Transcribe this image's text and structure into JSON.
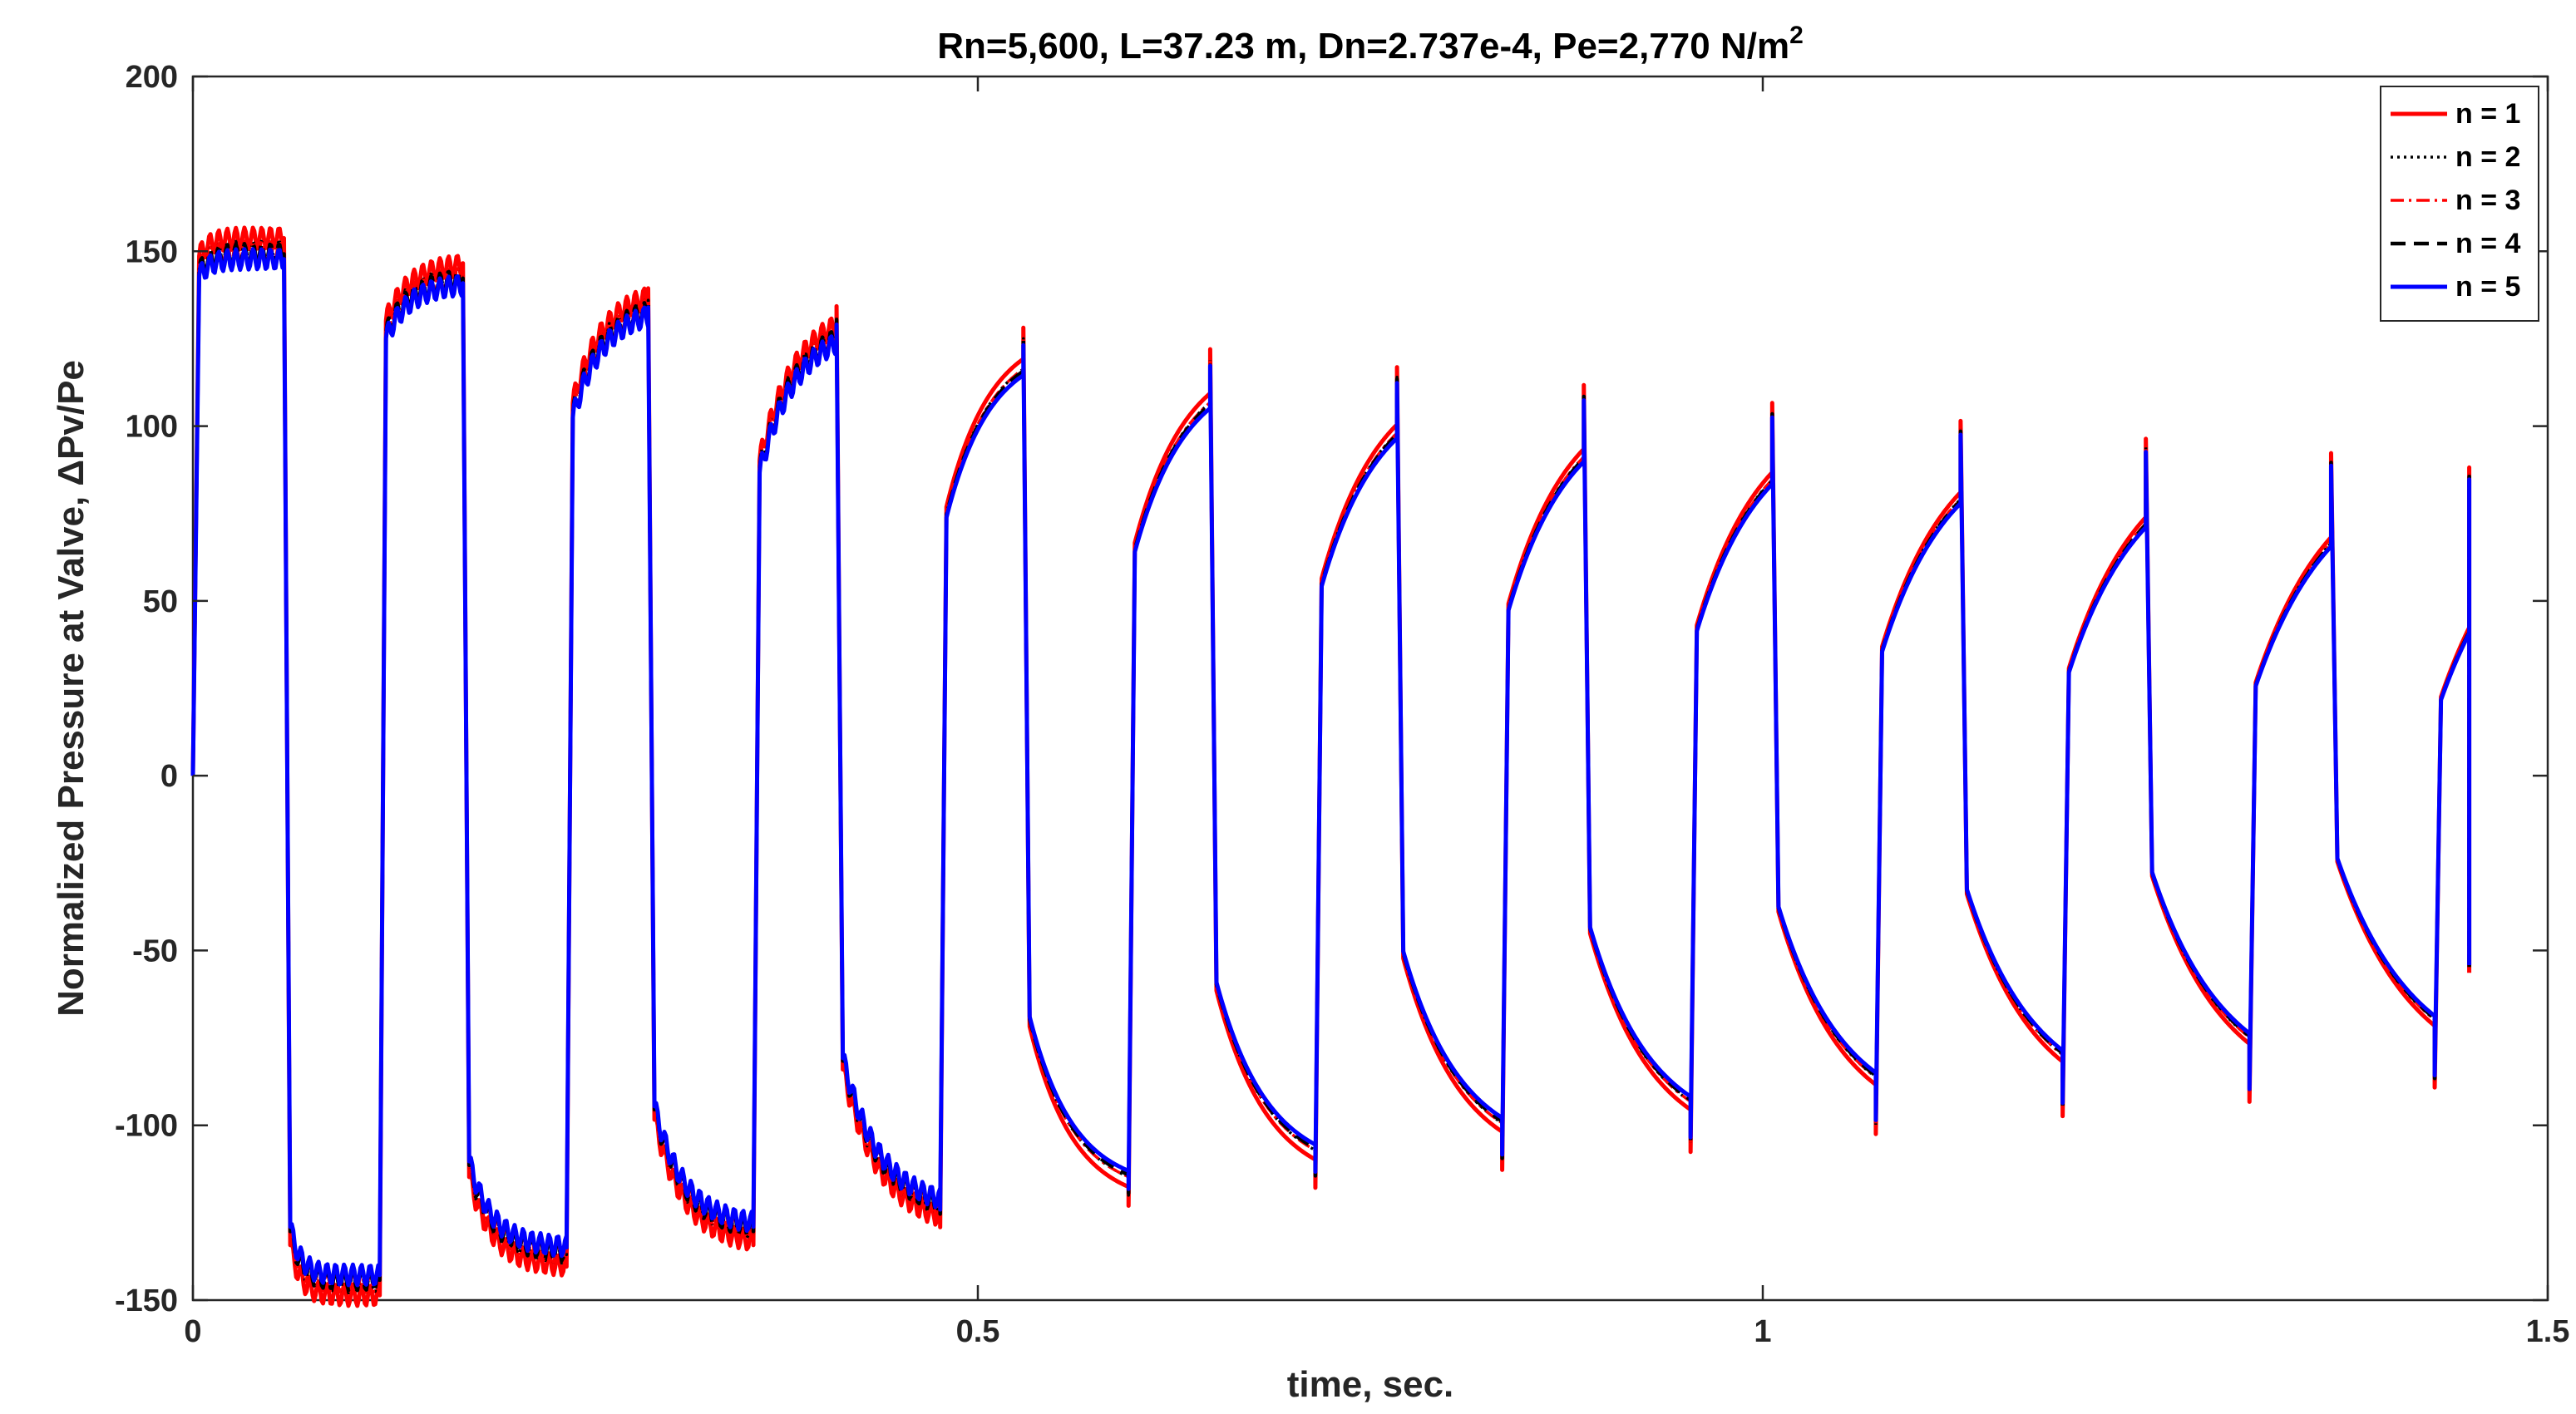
{
  "chart_data": {
    "type": "line",
    "title": "Rn=5,600, L=37.23 m, Dn=2.737e-4, Pe=2,770 N/m",
    "title_superscript": "2",
    "xlabel": "time, sec.",
    "ylabel": "Normalized Pressure at Valve, ΔPv/Pe",
    "xlim": [
      0,
      1.5
    ],
    "ylim": [
      -150,
      200
    ],
    "xticks": [
      0,
      0.5,
      1,
      1.5
    ],
    "xtick_labels": [
      "0",
      "0.5",
      "1",
      "1.5"
    ],
    "yticks": [
      -150,
      -100,
      -50,
      0,
      50,
      100,
      150,
      200
    ],
    "ytick_labels": [
      "-150",
      "-100",
      "-50",
      "0",
      "50",
      "100",
      "150",
      "200"
    ],
    "grid": false,
    "legend_position": "top-right",
    "period_sec": 0.1198,
    "wave": {
      "start_x": 0.0,
      "end_x": 1.45,
      "end_y": -55,
      "high_half_cycles": [
        {
          "rise_x": 0.0,
          "fall_x": 0.058,
          "peak": 150,
          "start": 145,
          "tau": 0.003
        },
        {
          "rise_x": 0.119,
          "fall_x": 0.172,
          "peak": 143,
          "start": 127,
          "tau": 0.004
        },
        {
          "rise_x": 0.238,
          "fall_x": 0.29,
          "peak": 136,
          "start": 104,
          "tau": 0.006
        },
        {
          "rise_x": 0.357,
          "fall_x": 0.41,
          "peak": 131,
          "start": 88,
          "tau": 0.008
        },
        {
          "rise_x": 0.476,
          "fall_x": 0.529,
          "peak": 125,
          "start": 75,
          "tau": 0.01
        },
        {
          "rise_x": 0.596,
          "fall_x": 0.648,
          "peak": 119,
          "start": 65,
          "tau": 0.012
        },
        {
          "rise_x": 0.715,
          "fall_x": 0.767,
          "peak": 114,
          "start": 55,
          "tau": 0.014
        },
        {
          "rise_x": 0.834,
          "fall_x": 0.886,
          "peak": 109,
          "start": 48,
          "tau": 0.015
        },
        {
          "rise_x": 0.954,
          "fall_x": 1.006,
          "peak": 104,
          "start": 42,
          "tau": 0.016
        },
        {
          "rise_x": 1.072,
          "fall_x": 1.126,
          "peak": 99,
          "start": 36,
          "tau": 0.017
        },
        {
          "rise_x": 1.191,
          "fall_x": 1.244,
          "peak": 94,
          "start": 30,
          "tau": 0.018
        },
        {
          "rise_x": 1.31,
          "fall_x": 1.362,
          "peak": 90,
          "start": 26,
          "tau": 0.019
        },
        {
          "rise_x": 1.428,
          "fall_x": 1.45,
          "peak": 86,
          "start": 22,
          "tau": 0.02
        }
      ],
      "low_half_cycles": [
        {
          "peak": -145,
          "start": -131
        },
        {
          "peak": -137,
          "start": -112
        },
        {
          "peak": -131,
          "start": -96
        },
        {
          "peak": -126,
          "start": -82
        },
        {
          "peak": -120,
          "start": -70
        },
        {
          "peak": -115,
          "start": -60
        },
        {
          "peak": -110,
          "start": -51
        },
        {
          "peak": -105,
          "start": -44
        },
        {
          "peak": -100,
          "start": -38
        },
        {
          "peak": -95,
          "start": -33
        },
        {
          "peak": -91,
          "start": -28
        },
        {
          "peak": -87,
          "start": -24
        }
      ]
    },
    "series": [
      {
        "name": "n = 1",
        "color": "#ff0000",
        "style": "solid",
        "amplitude_scale": 1.025
      },
      {
        "name": "n = 2",
        "color": "#000000",
        "style": "dotted",
        "amplitude_scale": 1.0
      },
      {
        "name": "n = 3",
        "color": "#ff0000",
        "style": "dash-dot",
        "amplitude_scale": 1.0
      },
      {
        "name": "n = 4",
        "color": "#000000",
        "style": "dashed",
        "amplitude_scale": 0.995
      },
      {
        "name": "n = 5",
        "color": "#0000ff",
        "style": "solid",
        "amplitude_scale": 0.985
      }
    ]
  }
}
